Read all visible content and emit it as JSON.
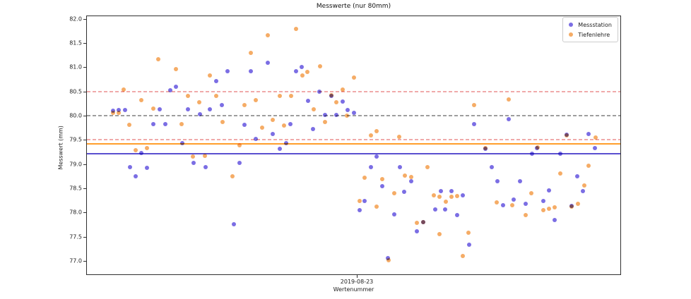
{
  "title": "Messwerte (nur 80mm)",
  "axes": {
    "ylabel": "Messwert (mm)",
    "xlabel": "Wertenummer",
    "x_tick_label": "2019-08-23",
    "x_tick_frac": 0.506,
    "y_ticks": [
      82.0,
      81.5,
      81.0,
      80.5,
      80.0,
      79.5,
      79.0,
      78.5,
      78.0,
      77.5,
      77.0
    ],
    "ylim": [
      76.71,
      82.07
    ]
  },
  "chart_data": {
    "type": "scatter",
    "title": "Messwerte (nur 80mm)",
    "xlabel": "Wertenummer",
    "ylabel": "Messwert (mm)",
    "x_tick_label": "2019-08-23",
    "ylim": [
      76.71,
      82.07
    ],
    "grid": false,
    "legend_position": "upper right",
    "x_note": "x given as fraction 0-1 along the x-axis; only visible tick is 2019-08-23 at 0.506",
    "hlines": [
      {
        "y": 80.5,
        "color": "#e05555",
        "style": "dashed",
        "name": "upper-tolerance"
      },
      {
        "y": 80.0,
        "color": "#3c3c3c",
        "style": "dashed",
        "name": "nominal"
      },
      {
        "y": 79.5,
        "color": "#e05555",
        "style": "dashed",
        "name": "lower-tolerance"
      },
      {
        "y": 79.42,
        "color": "#ff9e2c",
        "style": "solid",
        "name": "tiefenlehre-mean"
      },
      {
        "y": 79.22,
        "color": "#5a50d0",
        "style": "solid",
        "name": "messstation-mean"
      }
    ],
    "series": [
      {
        "name": "Messstation",
        "color": "#7b6ee4",
        "points": [
          [
            0.049,
            80.11
          ],
          [
            0.06,
            80.12
          ],
          [
            0.071,
            80.12
          ],
          [
            0.081,
            78.93
          ],
          [
            0.091,
            78.74
          ],
          [
            0.102,
            79.23
          ],
          [
            0.113,
            78.92
          ],
          [
            0.125,
            79.83
          ],
          [
            0.136,
            80.13
          ],
          [
            0.147,
            79.83
          ],
          [
            0.156,
            80.53
          ],
          [
            0.167,
            80.61
          ],
          [
            0.179,
            79.43
          ],
          [
            0.189,
            80.13
          ],
          [
            0.2,
            79.03
          ],
          [
            0.212,
            80.03
          ],
          [
            0.222,
            78.93
          ],
          [
            0.231,
            80.13
          ],
          [
            0.242,
            80.72
          ],
          [
            0.253,
            80.22
          ],
          [
            0.263,
            80.93
          ],
          [
            0.275,
            77.75
          ],
          [
            0.286,
            79.03
          ],
          [
            0.296,
            79.81
          ],
          [
            0.307,
            80.93
          ],
          [
            0.317,
            79.52
          ],
          [
            0.339,
            81.11
          ],
          [
            0.349,
            79.62
          ],
          [
            0.361,
            79.32
          ],
          [
            0.373,
            79.43
          ],
          [
            0.381,
            79.83
          ],
          [
            0.392,
            80.93
          ],
          [
            0.403,
            81.02
          ],
          [
            0.415,
            80.31
          ],
          [
            0.424,
            79.73
          ],
          [
            0.436,
            80.51
          ],
          [
            0.446,
            80.02
          ],
          [
            0.458,
            80.42
          ],
          [
            0.468,
            80.02
          ],
          [
            0.479,
            80.3
          ],
          [
            0.489,
            80.12
          ],
          [
            0.5,
            80.07
          ],
          [
            0.511,
            78.05
          ],
          [
            0.521,
            78.23
          ],
          [
            0.532,
            78.93
          ],
          [
            0.543,
            79.15
          ],
          [
            0.554,
            78.54
          ],
          [
            0.564,
            77.04
          ],
          [
            0.576,
            77.95
          ],
          [
            0.587,
            78.93
          ],
          [
            0.595,
            78.42
          ],
          [
            0.608,
            78.64
          ],
          [
            0.619,
            77.61
          ],
          [
            0.63,
            77.79
          ],
          [
            0.653,
            78.06
          ],
          [
            0.664,
            78.44
          ],
          [
            0.672,
            78.06
          ],
          [
            0.683,
            78.44
          ],
          [
            0.694,
            77.94
          ],
          [
            0.705,
            78.35
          ],
          [
            0.716,
            77.32
          ],
          [
            0.726,
            79.83
          ],
          [
            0.747,
            79.31
          ],
          [
            0.759,
            78.93
          ],
          [
            0.769,
            78.64
          ],
          [
            0.78,
            78.15
          ],
          [
            0.791,
            79.93
          ],
          [
            0.8,
            78.26
          ],
          [
            0.812,
            78.64
          ],
          [
            0.822,
            78.18
          ],
          [
            0.834,
            79.22
          ],
          [
            0.844,
            79.33
          ],
          [
            0.855,
            78.24
          ],
          [
            0.866,
            78.45
          ],
          [
            0.877,
            77.84
          ],
          [
            0.888,
            79.22
          ],
          [
            0.899,
            79.61
          ],
          [
            0.909,
            78.13
          ],
          [
            0.919,
            78.74
          ],
          [
            0.93,
            78.44
          ],
          [
            0.941,
            79.62
          ],
          [
            0.952,
            79.33
          ]
        ]
      },
      {
        "name": "Tiefenlehre",
        "color": "#f5ac66",
        "points": [
          [
            0.049,
            80.06
          ],
          [
            0.06,
            80.06
          ],
          [
            0.069,
            80.54
          ],
          [
            0.08,
            79.81
          ],
          [
            0.091,
            79.29
          ],
          [
            0.102,
            80.32
          ],
          [
            0.113,
            79.33
          ],
          [
            0.125,
            80.15
          ],
          [
            0.134,
            81.17
          ],
          [
            0.167,
            80.97
          ],
          [
            0.178,
            79.83
          ],
          [
            0.189,
            80.41
          ],
          [
            0.199,
            79.15
          ],
          [
            0.21,
            80.29
          ],
          [
            0.221,
            79.17
          ],
          [
            0.231,
            80.84
          ],
          [
            0.242,
            80.41
          ],
          [
            0.254,
            79.88
          ],
          [
            0.273,
            78.74
          ],
          [
            0.286,
            79.39
          ],
          [
            0.296,
            80.23
          ],
          [
            0.307,
            81.31
          ],
          [
            0.317,
            80.33
          ],
          [
            0.328,
            79.75
          ],
          [
            0.339,
            81.68
          ],
          [
            0.349,
            79.92
          ],
          [
            0.361,
            80.42
          ],
          [
            0.37,
            79.8
          ],
          [
            0.383,
            80.41
          ],
          [
            0.392,
            81.81
          ],
          [
            0.404,
            80.84
          ],
          [
            0.413,
            80.92
          ],
          [
            0.425,
            80.13
          ],
          [
            0.437,
            81.03
          ],
          [
            0.446,
            79.87
          ],
          [
            0.458,
            80.43
          ],
          [
            0.467,
            80.28
          ],
          [
            0.479,
            80.54
          ],
          [
            0.488,
            80.0
          ],
          [
            0.501,
            80.8
          ],
          [
            0.511,
            78.23
          ],
          [
            0.521,
            78.72
          ],
          [
            0.533,
            79.6
          ],
          [
            0.543,
            79.69
          ],
          [
            0.543,
            78.11
          ],
          [
            0.554,
            78.69
          ],
          [
            0.565,
            77.0
          ],
          [
            0.576,
            78.39
          ],
          [
            0.586,
            79.57
          ],
          [
            0.596,
            78.76
          ],
          [
            0.608,
            78.73
          ],
          [
            0.619,
            77.78
          ],
          [
            0.63,
            77.79
          ],
          [
            0.639,
            78.93
          ],
          [
            0.65,
            78.35
          ],
          [
            0.661,
            78.32
          ],
          [
            0.661,
            77.55
          ],
          [
            0.673,
            78.22
          ],
          [
            0.683,
            78.32
          ],
          [
            0.694,
            78.34
          ],
          [
            0.704,
            77.09
          ],
          [
            0.715,
            77.57
          ],
          [
            0.726,
            80.23
          ],
          [
            0.747,
            79.33
          ],
          [
            0.768,
            78.21
          ],
          [
            0.791,
            80.34
          ],
          [
            0.798,
            78.14
          ],
          [
            0.822,
            77.94
          ],
          [
            0.833,
            78.4
          ],
          [
            0.845,
            79.35
          ],
          [
            0.855,
            78.04
          ],
          [
            0.866,
            78.07
          ],
          [
            0.877,
            78.1
          ],
          [
            0.888,
            78.81
          ],
          [
            0.899,
            79.6
          ],
          [
            0.909,
            78.12
          ],
          [
            0.92,
            78.18
          ],
          [
            0.932,
            78.56
          ],
          [
            0.941,
            78.97
          ],
          [
            0.953,
            79.55
          ]
        ]
      }
    ]
  }
}
